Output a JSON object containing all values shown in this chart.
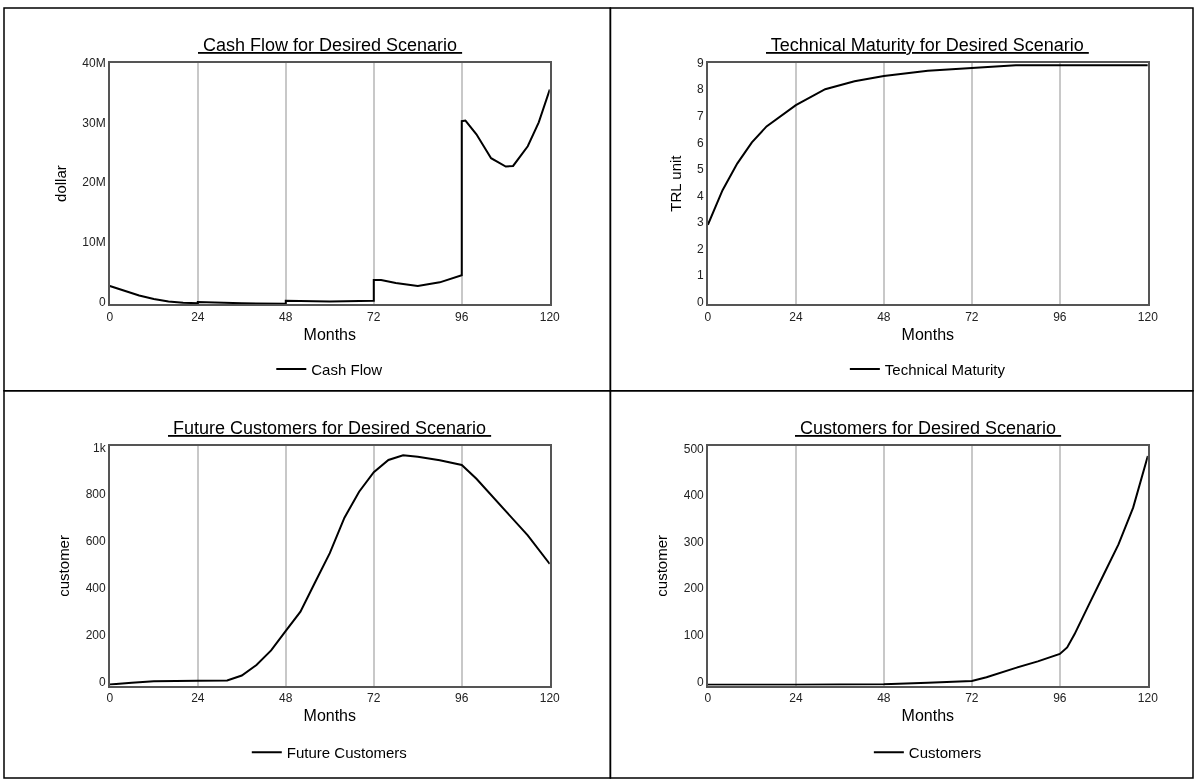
{
  "chart_data": [
    {
      "type": "line",
      "title": "Cash Flow for Desired Scenario",
      "xlabel": "Months",
      "ylabel": "dollar",
      "grid": "x",
      "legend": "bottom",
      "line_style": "solid",
      "x": [
        0,
        4,
        8,
        12,
        16,
        20,
        24,
        24,
        36,
        48,
        48,
        60,
        72,
        72,
        74,
        78,
        84,
        90,
        96,
        96,
        97,
        100,
        104,
        108,
        110,
        114,
        117,
        120
      ],
      "series": [
        {
          "name": "Cash Flow",
          "color": "#000000",
          "values": [
            2600000,
            1800000,
            1000000,
            400000,
            0,
            -200000,
            -300000,
            -100000,
            -300000,
            -400000,
            100000,
            0,
            100000,
            3600000,
            3600000,
            3100000,
            2600000,
            3200000,
            4400000,
            30200000,
            30300000,
            28000000,
            24000000,
            22600000,
            22700000,
            26000000,
            30000000,
            35500000
          ]
        }
      ],
      "xlim": [
        0,
        120
      ],
      "xticks": [
        0,
        24,
        48,
        72,
        96,
        120
      ],
      "ylim": [
        -500000,
        40000000
      ],
      "yticks": [
        {
          "value": 0,
          "label": "0"
        },
        {
          "value": 10000000,
          "label": "10M"
        },
        {
          "value": 20000000,
          "label": "20M"
        },
        {
          "value": 30000000,
          "label": "30M"
        },
        {
          "value": 40000000,
          "label": "40M"
        }
      ]
    },
    {
      "type": "line",
      "title": "Technical Maturity for Desired Scenario",
      "xlabel": "Months",
      "ylabel": "TRL unit",
      "grid": "x",
      "legend": "bottom",
      "line_style": "solid",
      "x": [
        0,
        4,
        8,
        12,
        16,
        24,
        32,
        40,
        48,
        60,
        72,
        84,
        96,
        120
      ],
      "series": [
        {
          "name": "Technical Maturity",
          "color": "#000000",
          "values": [
            2.9,
            4.2,
            5.2,
            6.0,
            6.6,
            7.4,
            8.0,
            8.3,
            8.5,
            8.7,
            8.8,
            8.9,
            8.9,
            8.9
          ]
        }
      ],
      "xlim": [
        0,
        120
      ],
      "xticks": [
        0,
        24,
        48,
        72,
        96,
        120
      ],
      "ylim": [
        -0.1,
        9
      ],
      "yticks": [
        0,
        1,
        2,
        3,
        4,
        5,
        6,
        7,
        8,
        9
      ]
    },
    {
      "type": "line",
      "title": "Future Customers for Desired Scenario",
      "xlabel": "Months",
      "ylabel": "customer",
      "grid": "x",
      "legend": "bottom",
      "line_style": "solid",
      "x": [
        0,
        6,
        12,
        24,
        32,
        36,
        40,
        44,
        48,
        52,
        56,
        60,
        64,
        68,
        72,
        76,
        80,
        84,
        90,
        96,
        100,
        108,
        114,
        120
      ],
      "series": [
        {
          "name": "Future Customers",
          "color": "#000000",
          "values": [
            -10,
            -3,
            3,
            6,
            7,
            28,
            73,
            135,
            218,
            300,
            425,
            549,
            700,
            811,
            894,
            946,
            966,
            960,
            945,
            925,
            866,
            728,
            625,
            503
          ]
        }
      ],
      "xlim": [
        0,
        120
      ],
      "xticks": [
        0,
        24,
        48,
        72,
        96,
        120
      ],
      "ylim": [
        -15,
        1005
      ],
      "yticks": [
        0,
        200,
        400,
        600,
        800,
        {
          "value": 1000,
          "label": "1k"
        }
      ]
    },
    {
      "type": "line",
      "title": "Customers for Desired Scenario",
      "xlabel": "Months",
      "ylabel": "customer",
      "grid": "x",
      "legend": "bottom",
      "line_style": "solid",
      "x": [
        0,
        24,
        48,
        60,
        72,
        76,
        84,
        90,
        96,
        98,
        100,
        104,
        108,
        112,
        116,
        120
      ],
      "series": [
        {
          "name": "Customers",
          "color": "#000000",
          "values": [
            -7,
            -7,
            -6,
            -3,
            1,
            9,
            29,
            43,
            59,
            73,
            101,
            166,
            230,
            294,
            373,
            484
          ]
        }
      ],
      "xlim": [
        0,
        120
      ],
      "xticks": [
        0,
        24,
        48,
        72,
        96,
        120
      ],
      "ylim": [
        -9,
        505
      ],
      "yticks": [
        0,
        100,
        200,
        300,
        400,
        500
      ]
    }
  ]
}
